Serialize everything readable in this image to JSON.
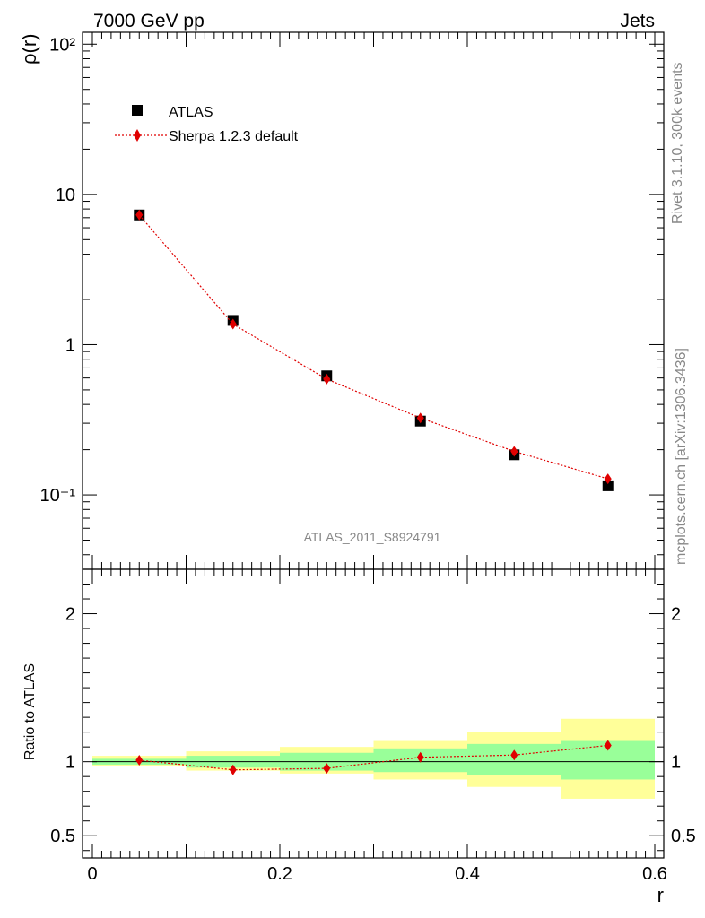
{
  "header": {
    "left_label": "7000 GeV pp",
    "right_label": "Jets"
  },
  "side_labels": {
    "rivet": "Rivet 3.1.10,  300k events",
    "mcplots": "mcplots.cern.ch [arXiv:1306.3436]"
  },
  "watermark": "ATLAS_2011_S8924791",
  "chart_data": [
    {
      "type": "scatter",
      "panel": "main",
      "xlabel": "r",
      "ylabel": "ρ(r)",
      "xlim": [
        0,
        0.6
      ],
      "ylim": [
        0.032,
        120
      ],
      "yscale": "log",
      "y_tick_labels": [
        "10⁻¹",
        "1",
        "10",
        "10²"
      ],
      "legend_position": "top-left",
      "series": [
        {
          "name": "ATLAS",
          "marker": "square",
          "color": "#000000",
          "x": [
            0.05,
            0.15,
            0.25,
            0.35,
            0.45,
            0.55
          ],
          "values": [
            7.3,
            1.45,
            0.62,
            0.31,
            0.185,
            0.115
          ]
        },
        {
          "name": "Sherpa 1.2.3 default",
          "marker": "diamond",
          "line": "dotted",
          "color": "#e00000",
          "x": [
            0.05,
            0.15,
            0.25,
            0.35,
            0.45,
            0.55
          ],
          "values": [
            7.3,
            1.37,
            0.59,
            0.325,
            0.195,
            0.128
          ]
        }
      ]
    },
    {
      "type": "scatter",
      "panel": "ratio",
      "xlabel": "r",
      "ylabel": "Ratio to ATLAS",
      "xlim": [
        0,
        0.6
      ],
      "ylim": [
        0.35,
        2.3
      ],
      "y_tick_labels": [
        "0.5",
        "1",
        "2"
      ],
      "x_tick_labels": [
        "0",
        "0.2",
        "0.4",
        "0.6"
      ],
      "bins": [
        [
          0,
          0.1
        ],
        [
          0.1,
          0.2
        ],
        [
          0.2,
          0.3
        ],
        [
          0.3,
          0.4
        ],
        [
          0.4,
          0.5
        ],
        [
          0.5,
          0.6
        ]
      ],
      "band_inner": [
        [
          0.98,
          1.02
        ],
        [
          0.96,
          1.04
        ],
        [
          0.94,
          1.06
        ],
        [
          0.93,
          1.09
        ],
        [
          0.91,
          1.12
        ],
        [
          0.88,
          1.14
        ]
      ],
      "band_outer": [
        [
          0.97,
          1.04
        ],
        [
          0.94,
          1.07
        ],
        [
          0.92,
          1.1
        ],
        [
          0.88,
          1.14
        ],
        [
          0.83,
          1.2
        ],
        [
          0.75,
          1.29
        ]
      ],
      "band_colors": {
        "inner": "#99ff99",
        "outer": "#ffff99"
      },
      "series": [
        {
          "name": "Sherpa 1.2.3 default",
          "marker": "diamond",
          "color": "#e00000",
          "x": [
            0.05,
            0.15,
            0.25,
            0.35,
            0.45,
            0.55
          ],
          "values": [
            1.01,
            0.945,
            0.955,
            1.03,
            1.045,
            1.11
          ]
        }
      ]
    }
  ]
}
